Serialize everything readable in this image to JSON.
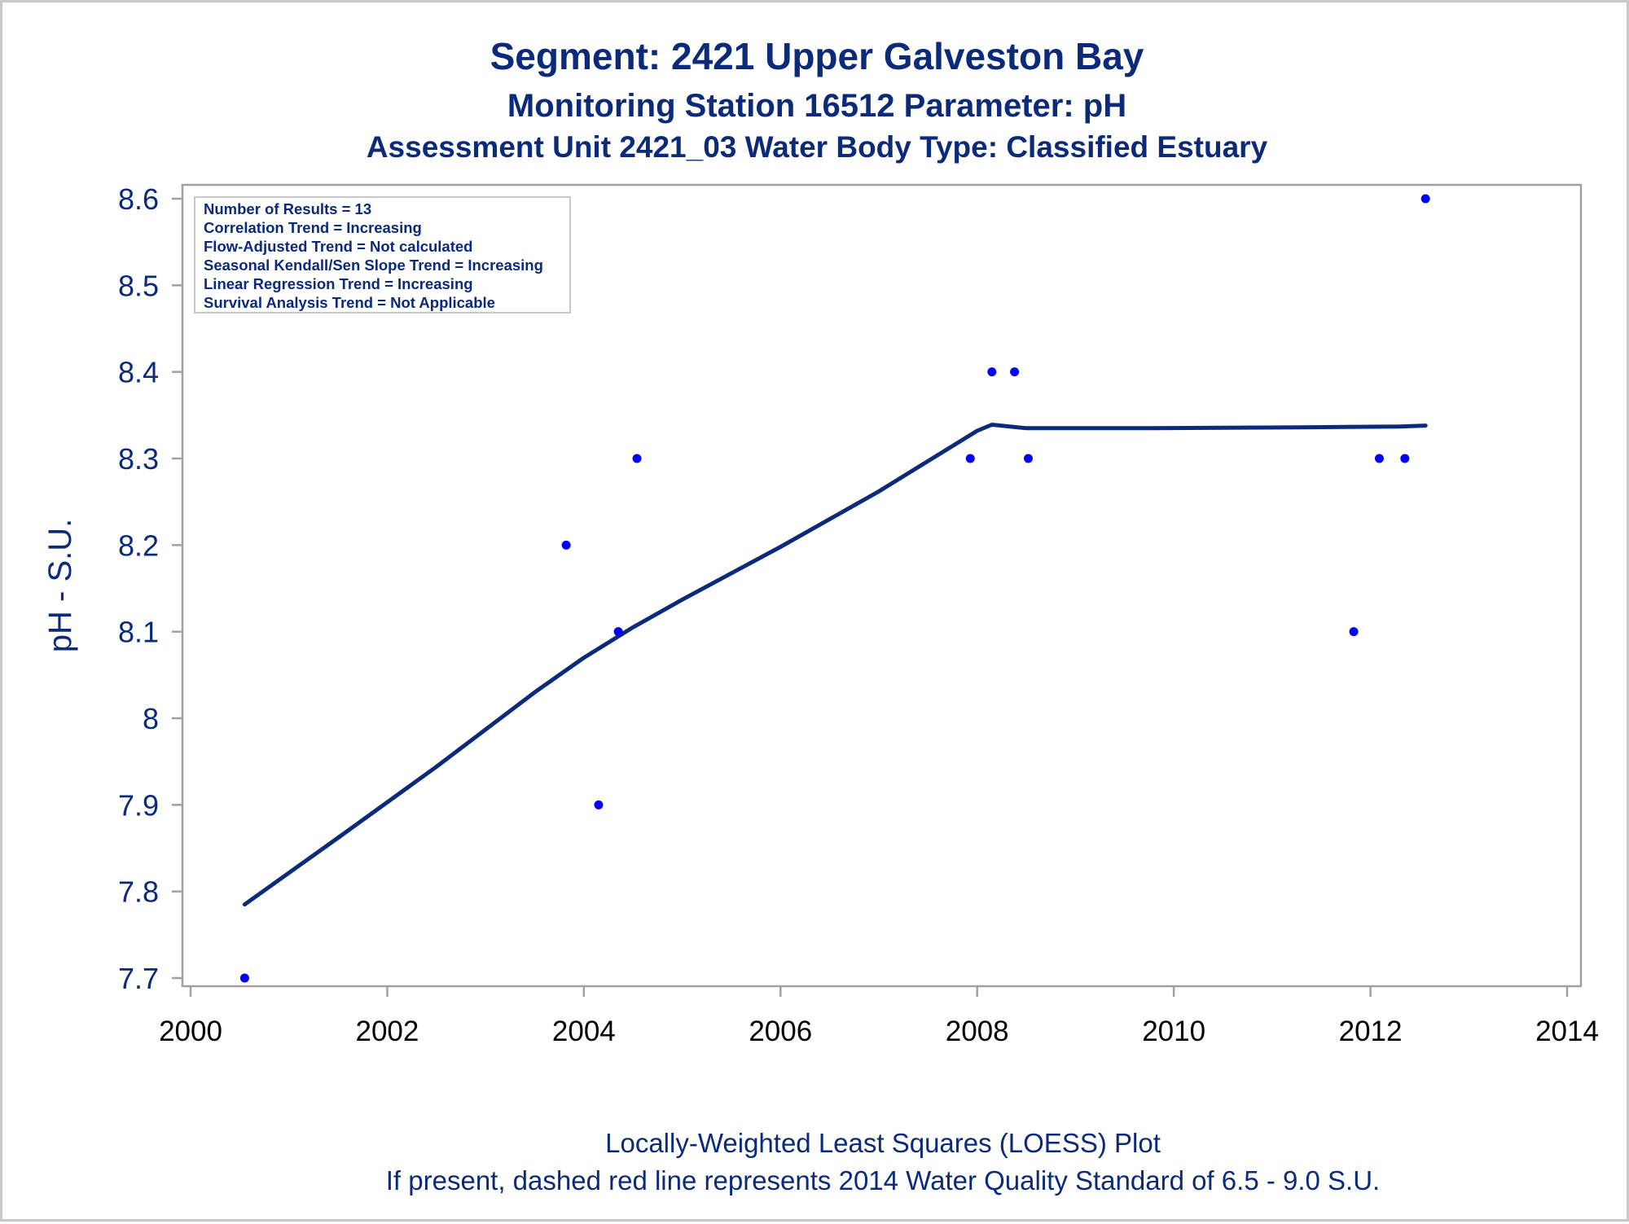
{
  "titles": [
    "Segment: 2421  Upper Galveston Bay",
    "Monitoring Station 16512 Parameter: pH",
    "Assessment Unit 2421_03   Water Body Type: Classified Estuary"
  ],
  "footnotes": [
    "Locally-Weighted Least Squares (LOESS) Plot",
    "If present, dashed red line represents 2014 Water Quality Standard of 6.5 - 9.0 S.U."
  ],
  "inset_lines": [
    "Number of Results = 13",
    "Correlation Trend = Increasing",
    "Flow-Adjusted Trend = Not calculated",
    "Seasonal Kendall/Sen Slope Trend = Increasing",
    "Linear Regression Trend = Increasing",
    "Survival Analysis Trend = Not Applicable"
  ],
  "colors": {
    "text": "#0b2a7a",
    "points": "#0000ff",
    "loess": "#0b2a7a",
    "axis": "#a0a0a0"
  },
  "chart_data": {
    "type": "scatter",
    "ylabel": "pH - S.U.",
    "xlabel": "",
    "xlim": [
      2000,
      2014
    ],
    "ylim": [
      7.7,
      8.6
    ],
    "x_ticks": [
      "2000",
      "2002",
      "2004",
      "2006",
      "2008",
      "2010",
      "2012",
      "2014"
    ],
    "y_ticks": [
      "7.7",
      "7.8",
      "7.9",
      "8",
      "8.1",
      "8.2",
      "8.3",
      "8.4",
      "8.5",
      "8.6"
    ],
    "points": [
      {
        "x": 2000.55,
        "y": 7.7
      },
      {
        "x": 2003.82,
        "y": 8.2
      },
      {
        "x": 2004.15,
        "y": 7.9
      },
      {
        "x": 2004.35,
        "y": 8.1
      },
      {
        "x": 2004.54,
        "y": 8.3
      },
      {
        "x": 2007.93,
        "y": 8.3
      },
      {
        "x": 2008.15,
        "y": 8.4
      },
      {
        "x": 2008.38,
        "y": 8.4
      },
      {
        "x": 2008.52,
        "y": 8.3
      },
      {
        "x": 2011.83,
        "y": 8.1
      },
      {
        "x": 2012.09,
        "y": 8.3
      },
      {
        "x": 2012.35,
        "y": 8.3
      },
      {
        "x": 2012.56,
        "y": 8.6
      }
    ],
    "loess": [
      {
        "x": 2000.55,
        "y": 7.785
      },
      {
        "x": 2001.5,
        "y": 7.862
      },
      {
        "x": 2002.5,
        "y": 7.944
      },
      {
        "x": 2003.5,
        "y": 8.03
      },
      {
        "x": 2004.0,
        "y": 8.07
      },
      {
        "x": 2004.5,
        "y": 8.105
      },
      {
        "x": 2005.0,
        "y": 8.137
      },
      {
        "x": 2006.0,
        "y": 8.198
      },
      {
        "x": 2007.0,
        "y": 8.262
      },
      {
        "x": 2007.8,
        "y": 8.318
      },
      {
        "x": 2008.0,
        "y": 8.332
      },
      {
        "x": 2008.15,
        "y": 8.339
      },
      {
        "x": 2008.5,
        "y": 8.335
      },
      {
        "x": 2009.8,
        "y": 8.335
      },
      {
        "x": 2011.3,
        "y": 8.336
      },
      {
        "x": 2012.3,
        "y": 8.337
      },
      {
        "x": 2012.56,
        "y": 8.338
      }
    ]
  }
}
